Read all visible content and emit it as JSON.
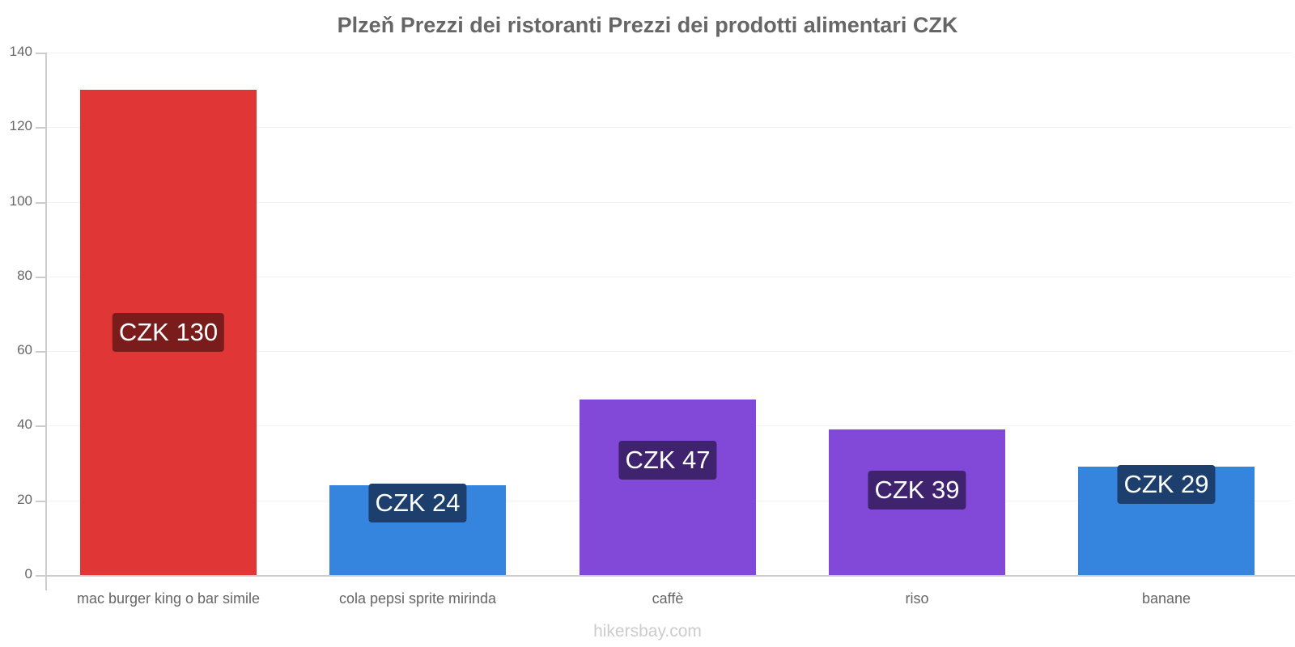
{
  "chart_data": {
    "type": "bar",
    "title": "Plzeň Prezzi dei ristoranti Prezzi dei prodotti alimentari CZK",
    "xlabel": "",
    "ylabel": "",
    "ylim": [
      0,
      140
    ],
    "yticks": [
      0,
      20,
      40,
      60,
      80,
      100,
      120,
      140
    ],
    "grid": true,
    "legend": null,
    "categories": [
      "mac burger king o bar simile",
      "cola pepsi sprite mirinda",
      "caffè",
      "riso",
      "banane"
    ],
    "values": [
      130,
      24,
      47,
      39,
      29
    ],
    "data_labels": [
      "CZK 130",
      "CZK 24",
      "CZK 47",
      "CZK 39",
      "CZK 29"
    ],
    "colors": [
      "#e03636",
      "#3584de",
      "#8249d8",
      "#8249d8",
      "#3584de"
    ],
    "label_bg_colors": [
      "#7a1c1c",
      "#1d3f6e",
      "#3f236f",
      "#3f236f",
      "#1d3f6e"
    ]
  },
  "footer": "hikersbay.com"
}
